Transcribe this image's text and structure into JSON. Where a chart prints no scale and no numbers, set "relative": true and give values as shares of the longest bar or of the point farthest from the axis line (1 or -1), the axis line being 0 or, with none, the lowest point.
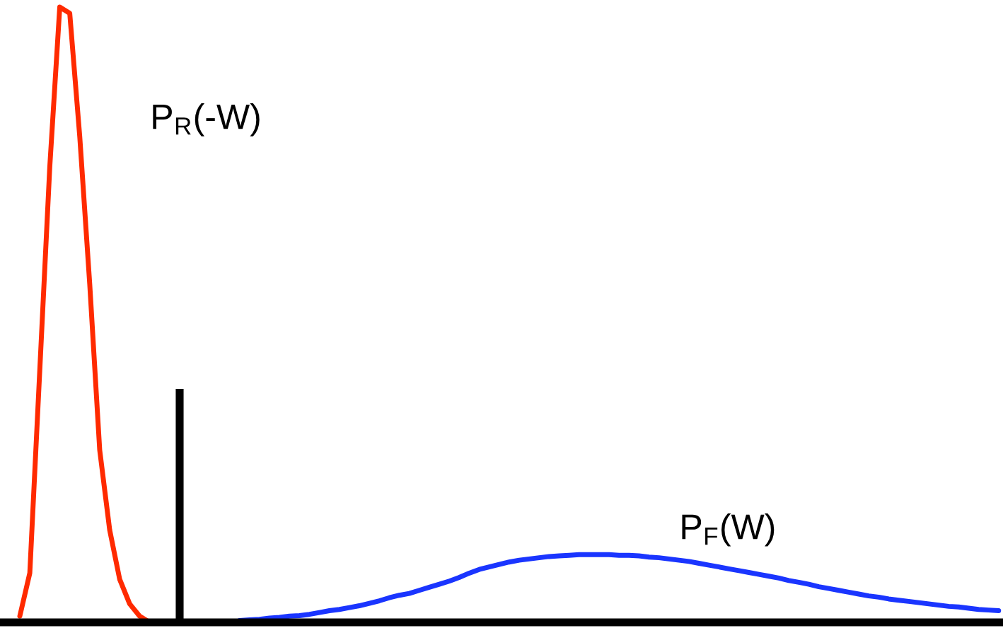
{
  "chart_data": {
    "type": "line",
    "relative": true,
    "legend": false,
    "categories": [
      null,
      null,
      null,
      null,
      null,
      null,
      null,
      null,
      null,
      null,
      null,
      null,
      null,
      null,
      null,
      null,
      null,
      null,
      null,
      null,
      null,
      null,
      null,
      null,
      null,
      null,
      null,
      null,
      null,
      null,
      null,
      null,
      null,
      null,
      null,
      null,
      null,
      null,
      null,
      null,
      null,
      null,
      null,
      null,
      null,
      null,
      null,
      null,
      null,
      null,
      null,
      null,
      null,
      null,
      null,
      null,
      null,
      null,
      null,
      null,
      null,
      null,
      null,
      null,
      null,
      null,
      null,
      null,
      null,
      null,
      null,
      null,
      null,
      null,
      null,
      null,
      null,
      null,
      null,
      null,
      null,
      null,
      null,
      null,
      null,
      null,
      null,
      null,
      null,
      null,
      null,
      null,
      null,
      null,
      null,
      null,
      null,
      null,
      null
    ],
    "series": [
      {
        "name": "P$_{R}$(-W)",
        "color": "#ff2a00",
        "values": [
          0.01,
          0.08,
          0.41,
          0.74,
          1.0,
          0.99,
          0.79,
          0.55,
          0.28,
          0.15,
          0.07,
          0.03,
          0.01,
          0,
          null,
          null,
          null,
          null,
          null,
          null,
          null,
          null,
          null,
          null,
          null,
          null,
          null,
          null,
          null,
          null,
          null,
          null,
          null,
          null,
          null,
          null,
          null,
          null,
          null,
          null,
          null,
          null,
          null,
          null,
          null,
          null,
          null,
          null,
          null,
          null,
          null,
          null,
          null,
          null,
          null,
          null,
          null,
          null,
          null,
          null,
          null,
          null,
          null,
          null,
          null,
          null,
          null,
          null,
          null,
          null,
          null,
          null,
          null,
          null,
          null,
          null,
          null,
          null,
          null,
          null,
          null,
          null,
          null,
          null,
          null,
          null,
          null,
          null,
          null,
          null,
          null,
          null,
          null,
          null,
          null,
          null,
          null,
          null,
          null
        ]
      },
      {
        "name": "P$_{F}$(W)",
        "color": "#1a35ff",
        "values": [
          null,
          null,
          null,
          null,
          null,
          null,
          null,
          null,
          null,
          null,
          null,
          null,
          null,
          null,
          null,
          null,
          null,
          null,
          null,
          null,
          null,
          null,
          0.003,
          0.004,
          0.005,
          0.007,
          0.008,
          0.01,
          0.011,
          0.013,
          0.016,
          0.019,
          0.021,
          0.024,
          0.027,
          0.031,
          0.035,
          0.04,
          0.044,
          0.047,
          0.052,
          0.057,
          0.062,
          0.067,
          0.073,
          0.08,
          0.086,
          0.09,
          0.094,
          0.098,
          0.101,
          0.103,
          0.105,
          0.107,
          0.108,
          0.109,
          0.11,
          0.11,
          0.11,
          0.11,
          0.109,
          0.109,
          0.108,
          0.106,
          0.105,
          0.103,
          0.101,
          0.099,
          0.096,
          0.093,
          0.09,
          0.087,
          0.084,
          0.081,
          0.078,
          0.075,
          0.072,
          0.068,
          0.065,
          0.062,
          0.058,
          0.055,
          0.052,
          0.049,
          0.046,
          0.043,
          0.041,
          0.038,
          0.036,
          0.034,
          0.032,
          0.03,
          0.028,
          0.026,
          0.025,
          0.023,
          0.021,
          0.02,
          0.019
        ]
      }
    ]
  }
}
